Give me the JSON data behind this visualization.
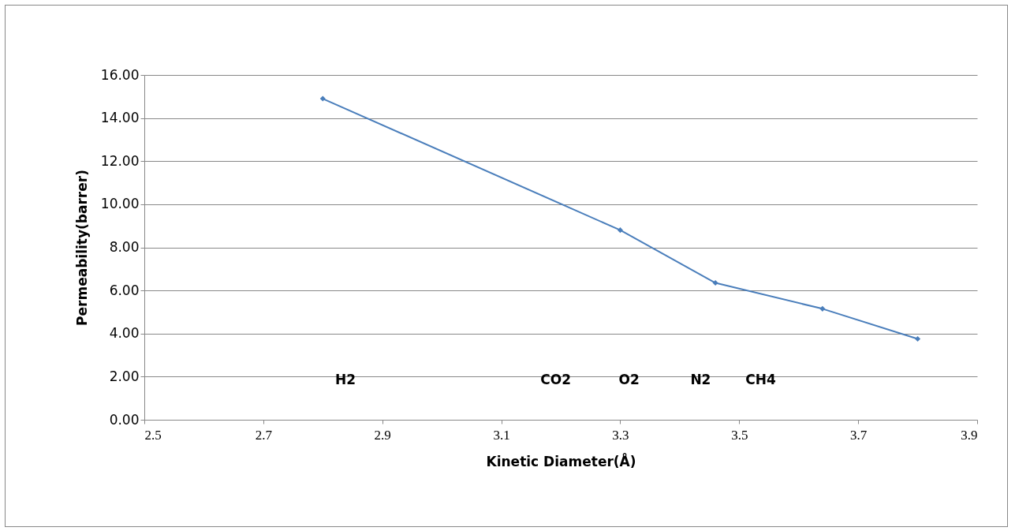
{
  "chart_data": {
    "type": "line",
    "xlabel": "Kinetic Diameter(Å)",
    "ylabel": "Permeability(barrer)",
    "x": [
      2.8,
      3.3,
      3.46,
      3.64,
      3.8
    ],
    "series": [
      {
        "color": "#4a7ebb",
        "values": [
          14.9,
          8.8,
          6.35,
          5.15,
          3.75
        ]
      }
    ],
    "xlim": [
      2.5,
      3.9
    ],
    "xticks": [
      2.5,
      2.7,
      2.9,
      3.1,
      3.3,
      3.5,
      3.7,
      3.9
    ],
    "ylim": [
      0,
      16
    ],
    "yticks": [
      {
        "value": 0,
        "label": "0.00"
      },
      {
        "value": 2,
        "label": "2.00"
      },
      {
        "value": 4,
        "label": "4.00"
      },
      {
        "value": 6,
        "label": "6.00"
      },
      {
        "value": 8,
        "label": "8.00"
      },
      {
        "value": 10,
        "label": "10.00"
      },
      {
        "value": 12,
        "label": "12.00"
      },
      {
        "value": 14,
        "label": "14.00"
      },
      {
        "value": 16,
        "label": "16.00"
      }
    ],
    "grid": "y",
    "marker": "diamond",
    "line_style": "solid",
    "annotations": [
      "H2",
      "CO2",
      "O2",
      "N2",
      "CH4"
    ]
  }
}
